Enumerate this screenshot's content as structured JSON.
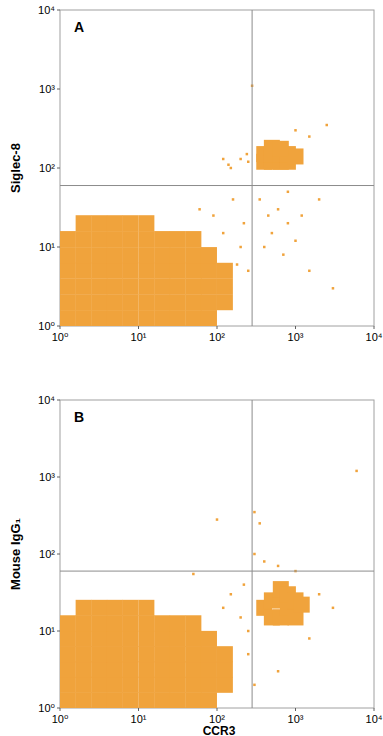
{
  "chart_data": [
    {
      "type": "scatter",
      "annotation": "A",
      "ylabel": "Siglec-8",
      "log": true,
      "grid": false,
      "tick_labels": true,
      "color": "#f0a33c",
      "xlim": [
        1,
        10000
      ],
      "ylim": [
        1,
        10000
      ],
      "xticks": [
        {
          "value": 1,
          "label": "10⁰"
        },
        {
          "value": 10,
          "label": "10¹"
        },
        {
          "value": 100,
          "label": "10²"
        },
        {
          "value": 1000,
          "label": "10³"
        },
        {
          "value": 10000,
          "label": "10⁴"
        }
      ],
      "yticks": [
        {
          "value": 1,
          "label": "10⁰"
        },
        {
          "value": 10,
          "label": "10¹"
        },
        {
          "value": 100,
          "label": "10²"
        },
        {
          "value": 1000,
          "label": "10³"
        },
        {
          "value": 10000,
          "label": "10⁴"
        }
      ],
      "gates": {
        "x": 280,
        "y": 60
      },
      "series": [
        {
          "marker": "blob",
          "color": "#f0a33c",
          "x": [
            1.26,
            2,
            3.16,
            5,
            7.9,
            12.6,
            20,
            31.6,
            50,
            79,
            1.26,
            2,
            3.16,
            5,
            7.9,
            12.6,
            20,
            31.6,
            50,
            79,
            126,
            1.26,
            2,
            3.16,
            5,
            7.9,
            12.6,
            20,
            31.6,
            50,
            79,
            126,
            1.26,
            2,
            3.16,
            5,
            7.9,
            12.6,
            20,
            31.6,
            50,
            79,
            126,
            1.26,
            2,
            3.16,
            5,
            7.9,
            12.6,
            20,
            31.6,
            50,
            79,
            1.26,
            2,
            3.16,
            5,
            7.9,
            12.6,
            20,
            31.6,
            50,
            2,
            3.16,
            5,
            7.9,
            12.6
          ],
          "y": [
            1.26,
            1.26,
            1.26,
            1.26,
            1.26,
            1.26,
            1.26,
            1.26,
            1.26,
            1.26,
            2,
            2,
            2,
            2,
            2,
            2,
            2,
            2,
            2,
            2,
            2,
            3.16,
            3.16,
            3.16,
            3.16,
            3.16,
            3.16,
            3.16,
            3.16,
            3.16,
            3.16,
            3.16,
            5,
            5,
            5,
            5,
            5,
            5,
            5,
            5,
            5,
            5,
            5,
            7.9,
            7.9,
            7.9,
            7.9,
            7.9,
            7.9,
            7.9,
            7.9,
            7.9,
            7.9,
            12.6,
            12.6,
            12.6,
            12.6,
            12.6,
            12.6,
            12.6,
            12.6,
            12.6,
            20,
            20,
            20,
            20,
            20
          ]
        },
        {
          "marker": "blob",
          "color": "#f0a33c",
          "x": [
            400,
            500,
            650,
            800,
            400,
            500,
            650,
            800,
            1000,
            500,
            650
          ],
          "y": [
            120,
            120,
            120,
            120,
            150,
            150,
            150,
            150,
            140,
            180,
            175
          ]
        },
        {
          "marker": "dot",
          "color": "#f0a33c",
          "x": [
            150,
            180,
            200,
            120,
            90,
            60,
            250,
            220,
            160,
            140,
            200,
            240,
            250,
            280,
            400,
            500,
            600,
            700,
            800,
            1000,
            1200,
            1500,
            3000,
            2000,
            1000,
            1500,
            2500,
            350,
            450,
            800,
            120,
            150
          ],
          "y": [
            3,
            6,
            10,
            15,
            25,
            30,
            5,
            20,
            40,
            110,
            130,
            150,
            120,
            1100,
            10,
            15,
            30,
            8,
            20,
            12,
            25,
            5,
            3,
            40,
            300,
            250,
            350,
            40,
            25,
            50,
            130,
            100
          ]
        }
      ]
    },
    {
      "type": "scatter",
      "annotation": "B",
      "ylabel": "Mouse IgG₁",
      "xlabel": "CCR3",
      "log": true,
      "grid": false,
      "tick_labels": true,
      "color": "#f0a33c",
      "xlim": [
        1,
        10000
      ],
      "ylim": [
        1,
        10000
      ],
      "xticks": [
        {
          "value": 1,
          "label": "10⁰"
        },
        {
          "value": 10,
          "label": "10¹"
        },
        {
          "value": 100,
          "label": "10²"
        },
        {
          "value": 1000,
          "label": "10³"
        },
        {
          "value": 10000,
          "label": "10⁴"
        }
      ],
      "yticks": [
        {
          "value": 1,
          "label": "10⁰"
        },
        {
          "value": 10,
          "label": "10¹"
        },
        {
          "value": 100,
          "label": "10²"
        },
        {
          "value": 1000,
          "label": "10³"
        },
        {
          "value": 10000,
          "label": "10⁴"
        }
      ],
      "gates": {
        "x": 280,
        "y": 60
      },
      "series": [
        {
          "marker": "blob",
          "color": "#f0a33c",
          "x": [
            1.26,
            2,
            3.16,
            5,
            7.9,
            12.6,
            20,
            31.6,
            50,
            79,
            1.26,
            2,
            3.16,
            5,
            7.9,
            12.6,
            20,
            31.6,
            50,
            79,
            126,
            1.26,
            2,
            3.16,
            5,
            7.9,
            12.6,
            20,
            31.6,
            50,
            79,
            126,
            1.26,
            2,
            3.16,
            5,
            7.9,
            12.6,
            20,
            31.6,
            50,
            79,
            126,
            1.26,
            2,
            3.16,
            5,
            7.9,
            12.6,
            20,
            31.6,
            50,
            79,
            1.26,
            2,
            3.16,
            5,
            7.9,
            12.6,
            20,
            31.6,
            50,
            2,
            3.16,
            5,
            7.9,
            12.6
          ],
          "y": [
            1.26,
            1.26,
            1.26,
            1.26,
            1.26,
            1.26,
            1.26,
            1.26,
            1.26,
            1.26,
            2,
            2,
            2,
            2,
            2,
            2,
            2,
            2,
            2,
            2,
            2,
            3.16,
            3.16,
            3.16,
            3.16,
            3.16,
            3.16,
            3.16,
            3.16,
            3.16,
            3.16,
            3.16,
            5,
            5,
            5,
            5,
            5,
            5,
            5,
            5,
            5,
            5,
            5,
            7.9,
            7.9,
            7.9,
            7.9,
            7.9,
            7.9,
            7.9,
            7.9,
            7.9,
            7.9,
            12.6,
            12.6,
            12.6,
            12.6,
            12.6,
            12.6,
            12.6,
            12.6,
            12.6,
            20,
            20,
            20,
            20,
            20
          ]
        },
        {
          "marker": "blob",
          "color": "#f0a33c",
          "x": [
            400,
            500,
            500,
            650,
            650,
            650,
            800,
            800,
            1000,
            1000,
            1200
          ],
          "y": [
            20,
            15,
            25,
            15,
            25,
            35,
            20,
            30,
            15,
            25,
            22
          ]
        },
        {
          "marker": "dot",
          "color": "#f0a33c",
          "x": [
            250,
            200,
            220,
            150,
            120,
            300,
            300,
            350,
            400,
            600,
            1000,
            1500,
            2000,
            3000,
            6000,
            600,
            300,
            250,
            100,
            50
          ],
          "y": [
            5,
            15,
            40,
            30,
            20,
            100,
            350,
            250,
            80,
            70,
            60,
            8,
            30,
            20,
            1200,
            3,
            2,
            10,
            280,
            55
          ]
        }
      ]
    }
  ]
}
